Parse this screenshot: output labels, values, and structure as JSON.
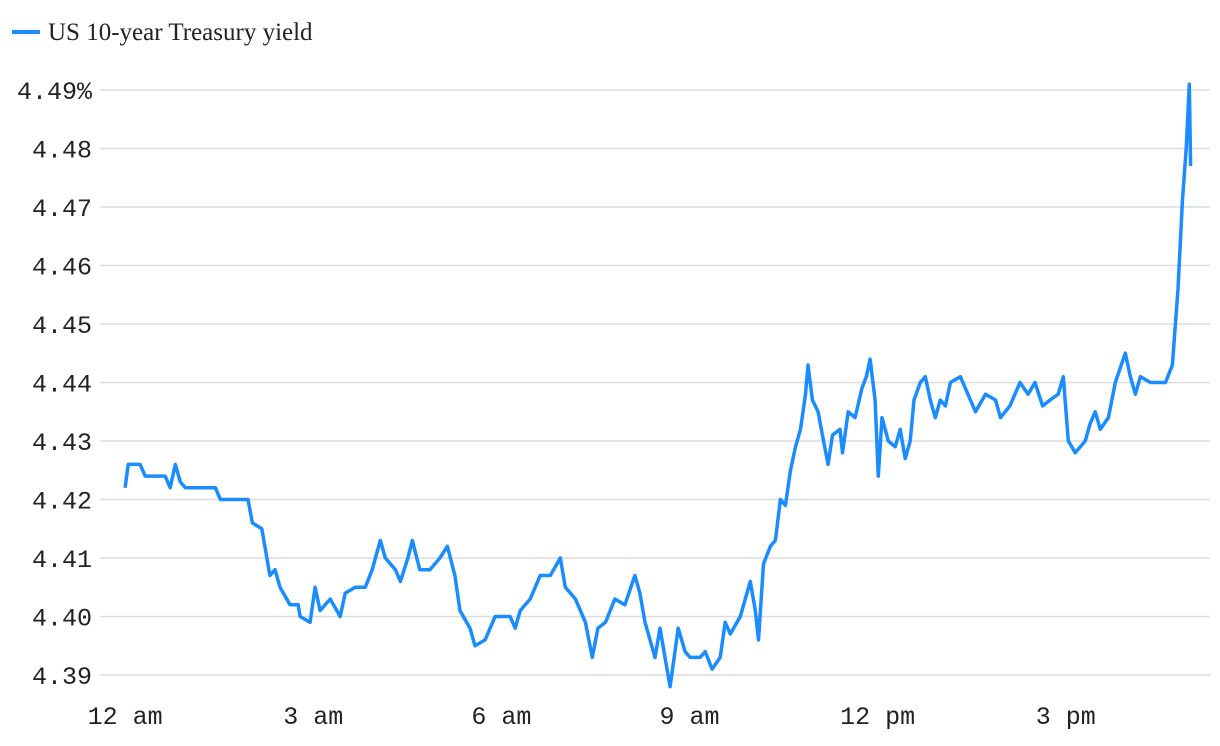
{
  "chart_data": {
    "type": "line",
    "x": [
      0,
      0.05,
      0.24,
      0.32,
      0.64,
      0.72,
      0.8,
      0.88,
      0.96,
      1.44,
      1.52,
      1.96,
      2.03,
      2.18,
      2.31,
      2.39,
      2.47,
      2.63,
      2.76,
      2.79,
      2.95,
      3.03,
      3.11,
      3.27,
      3.43,
      3.51,
      3.67,
      3.83,
      3.94,
      4.07,
      4.15,
      4.31,
      4.39,
      4.51,
      4.58,
      4.7,
      4.86,
      5.02,
      5.14,
      5.26,
      5.34,
      5.5,
      5.58,
      5.74,
      5.9,
      6.14,
      6.22,
      6.3,
      6.46,
      6.62,
      6.78,
      6.94,
      7.02,
      7.18,
      7.26,
      7.34,
      7.45,
      7.54,
      7.66,
      7.81,
      7.97,
      8.13,
      8.21,
      8.29,
      8.37,
      8.45,
      8.53,
      8.61,
      8.69,
      8.82,
      8.93,
      9.01,
      9.17,
      9.25,
      9.36,
      9.49,
      9.57,
      9.65,
      9.81,
      9.97,
      10.05,
      10.1,
      10.18,
      10.29,
      10.37,
      10.45,
      10.53,
      10.61,
      10.69,
      10.77,
      10.85,
      10.89,
      10.96,
      11.05,
      11.12,
      11.21,
      11.28,
      11.4,
      11.44,
      11.53,
      11.64,
      11.75,
      11.82,
      11.88,
      11.96,
      12.01,
      12.07,
      12.17,
      12.28,
      12.36,
      12.44,
      12.52,
      12.58,
      12.68,
      12.76,
      12.84,
      12.92,
      13.0,
      13.08,
      13.16,
      13.32,
      13.4,
      13.56,
      13.72,
      13.88,
      13.96,
      14.11,
      14.27,
      14.4,
      14.51,
      14.63,
      14.75,
      14.88,
      14.96,
      15.04,
      15.15,
      15.31,
      15.39,
      15.47,
      15.55,
      15.68,
      15.79,
      15.95,
      16.03,
      16.11,
      16.19,
      16.35,
      16.59,
      16.7,
      16.79,
      16.86,
      16.92,
      16.97,
      16.99
    ],
    "series": [
      {
        "name": "US 10-year Treasury yield",
        "color": "#1a8cff",
        "values": [
          4.422,
          4.426,
          4.426,
          4.424,
          4.424,
          4.422,
          4.426,
          4.423,
          4.422,
          4.422,
          4.42,
          4.42,
          4.416,
          4.415,
          4.407,
          4.408,
          4.405,
          4.402,
          4.402,
          4.4,
          4.399,
          4.405,
          4.401,
          4.403,
          4.4,
          4.404,
          4.405,
          4.405,
          4.408,
          4.413,
          4.41,
          4.408,
          4.406,
          4.41,
          4.413,
          4.408,
          4.408,
          4.41,
          4.412,
          4.407,
          4.401,
          4.398,
          4.395,
          4.396,
          4.4,
          4.4,
          4.398,
          4.401,
          4.403,
          4.407,
          4.407,
          4.41,
          4.405,
          4.403,
          4.401,
          4.399,
          4.393,
          4.398,
          4.399,
          4.403,
          4.402,
          4.407,
          4.404,
          4.399,
          4.396,
          4.393,
          4.398,
          4.393,
          4.388,
          4.398,
          4.394,
          4.393,
          4.393,
          4.394,
          4.391,
          4.393,
          4.399,
          4.397,
          4.4,
          4.406,
          4.401,
          4.396,
          4.409,
          4.412,
          4.413,
          4.42,
          4.419,
          4.425,
          4.429,
          4.432,
          4.438,
          4.443,
          4.437,
          4.435,
          4.431,
          4.426,
          4.431,
          4.432,
          4.428,
          4.435,
          4.434,
          4.439,
          4.441,
          4.444,
          4.437,
          4.424,
          4.434,
          4.43,
          4.429,
          4.432,
          4.427,
          4.43,
          4.437,
          4.44,
          4.441,
          4.437,
          4.434,
          4.437,
          4.436,
          4.44,
          4.441,
          4.439,
          4.435,
          4.438,
          4.437,
          4.434,
          4.436,
          4.44,
          4.438,
          4.44,
          4.436,
          4.437,
          4.438,
          4.441,
          4.43,
          4.428,
          4.43,
          4.433,
          4.435,
          4.432,
          4.434,
          4.44,
          4.445,
          4.441,
          4.438,
          4.441,
          4.44,
          4.44,
          4.443,
          4.456,
          4.471,
          4.48,
          4.491,
          4.477
        ]
      }
    ],
    "xlim": [
      -0.4,
      17.3
    ],
    "xticks": [
      {
        "value": 0,
        "label": "12 am"
      },
      {
        "value": 3,
        "label": "3 am"
      },
      {
        "value": 6,
        "label": "6 am"
      },
      {
        "value": 9,
        "label": "9 am"
      },
      {
        "value": 12,
        "label": "12 pm"
      },
      {
        "value": 15,
        "label": "3 pm"
      }
    ],
    "ylim": [
      4.39,
      4.49
    ],
    "yticks": [
      4.39,
      {
        "value": 4.4,
        "label": "4.40"
      },
      4.41,
      4.42,
      4.43,
      4.44,
      4.45,
      4.46,
      4.47,
      4.48,
      {
        "value": 4.49,
        "label": "4.49%"
      }
    ],
    "grid": true,
    "legend": "top-left"
  }
}
